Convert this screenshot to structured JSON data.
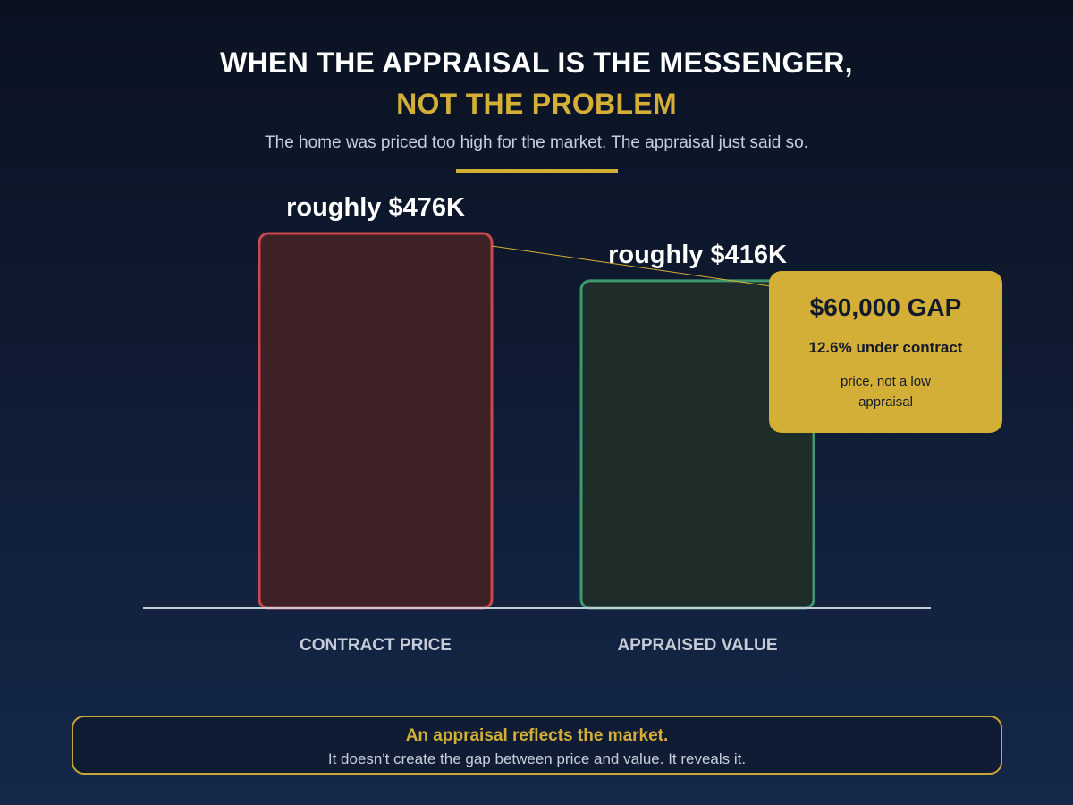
{
  "header": {
    "title_line1": "WHEN THE APPRAISAL IS THE MESSENGER,",
    "title_line2": "NOT THE PROBLEM",
    "subtitle": "The home was priced too high for the market. The appraisal just said so."
  },
  "chart_data": {
    "type": "bar",
    "categories": [
      "CONTRACT PRICE",
      "APPRAISED VALUE"
    ],
    "values": [
      476000,
      416000
    ],
    "data_labels": [
      "roughly $476K",
      "roughly $416K"
    ],
    "title": "WHEN THE APPRAISAL IS THE MESSENGER, NOT THE PROBLEM",
    "xlabel": "",
    "ylabel": "",
    "ylim": [
      0,
      476000
    ],
    "grid": false,
    "colors": {
      "contract_border": "#c9484c",
      "contract_fill": "#3d2125",
      "appraised_border": "#3e9a6e",
      "appraised_fill": "#1f2d2a",
      "baseline": "#c5cbd6",
      "connector": "#d4af37"
    }
  },
  "callout": {
    "headline": "$60,000 GAP",
    "subline": "12.6% under contract",
    "note": "price, not a low appraisal",
    "color": "#d4af37"
  },
  "footer": {
    "title": "An appraisal reflects the market.",
    "text": "It doesn't create the gap between price and value. It reveals it."
  },
  "colors": {
    "accent": "#d4af37",
    "background_top": "#0a1222",
    "background_bottom": "#14284a"
  }
}
